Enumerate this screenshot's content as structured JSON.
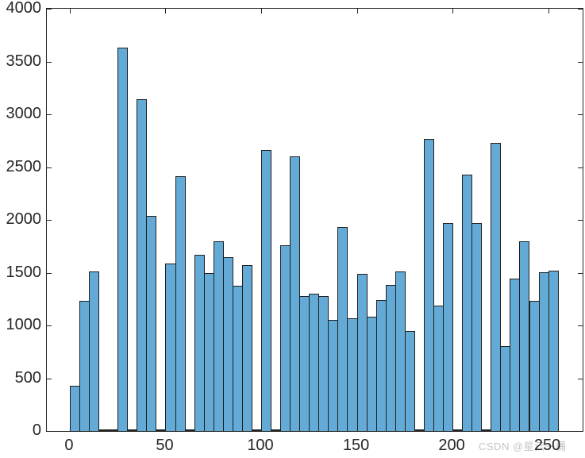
{
  "chart_data": {
    "type": "bar",
    "subtype": "histogram",
    "title": "",
    "xlabel": "",
    "ylabel": "",
    "bin_start": 0,
    "bin_width": 5,
    "counts": [
      425,
      1235,
      1510,
      0,
      0,
      3630,
      0,
      3140,
      2035,
      0,
      1590,
      2410,
      0,
      1670,
      1495,
      1800,
      1650,
      1375,
      1570,
      0,
      2660,
      0,
      1760,
      2600,
      1275,
      1300,
      1280,
      1050,
      1930,
      1070,
      1490,
      1080,
      1240,
      1385,
      1510,
      950,
      0,
      2770,
      1190,
      1970,
      0,
      2430,
      1970,
      0,
      2730,
      805,
      1445,
      1800,
      1235,
      1505,
      1520
    ],
    "xlim": [
      -12,
      268
    ],
    "ylim": [
      0,
      4000
    ],
    "xticks": [
      0,
      50,
      100,
      150,
      200,
      250
    ],
    "yticks": [
      0,
      500,
      1000,
      1500,
      2000,
      2500,
      3000,
      3500,
      4000
    ],
    "grid": false,
    "legend": null,
    "bar_face_color": "#63ABD6",
    "bar_edge_color": "#1f1f1f",
    "axis_color": "#262626"
  },
  "watermark": {
    "text": "CSDN @星云一桶"
  }
}
